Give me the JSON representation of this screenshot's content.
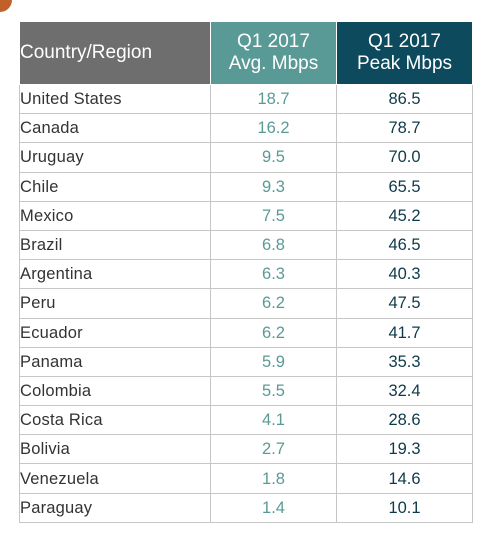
{
  "table": {
    "headers": {
      "country": "Country/Region",
      "avg_line1": "Q1 2017",
      "avg_line2": "Avg. Mbps",
      "peak_line1": "Q1 2017",
      "peak_line2": "Peak Mbps"
    },
    "rows": [
      {
        "country": "United States",
        "avg": "18.7",
        "peak": "86.5"
      },
      {
        "country": "Canada",
        "avg": "16.2",
        "peak": "78.7"
      },
      {
        "country": "Uruguay",
        "avg": "9.5",
        "peak": "70.0"
      },
      {
        "country": "Chile",
        "avg": "9.3",
        "peak": "65.5"
      },
      {
        "country": "Mexico",
        "avg": "7.5",
        "peak": "45.2"
      },
      {
        "country": "Brazil",
        "avg": "6.8",
        "peak": "46.5"
      },
      {
        "country": "Argentina",
        "avg": "6.3",
        "peak": "40.3"
      },
      {
        "country": "Peru",
        "avg": "6.2",
        "peak": "47.5"
      },
      {
        "country": "Ecuador",
        "avg": "6.2",
        "peak": "41.7"
      },
      {
        "country": "Panama",
        "avg": "5.9",
        "peak": "35.3"
      },
      {
        "country": "Colombia",
        "avg": "5.5",
        "peak": "32.4"
      },
      {
        "country": "Costa Rica",
        "avg": "4.1",
        "peak": "28.6"
      },
      {
        "country": "Bolivia",
        "avg": "2.7",
        "peak": "19.3"
      },
      {
        "country": "Venezuela",
        "avg": "1.8",
        "peak": "14.6"
      },
      {
        "country": "Paraguay",
        "avg": "1.4",
        "peak": "10.1"
      }
    ]
  },
  "colors": {
    "header_country_bg": "#6e6e6e",
    "header_avg_bg": "#5a9a96",
    "header_peak_bg": "#0e4a5e",
    "avg_text": "#5a9a96",
    "peak_text": "#0e3a4a",
    "corner_accent": "#c0612b"
  }
}
